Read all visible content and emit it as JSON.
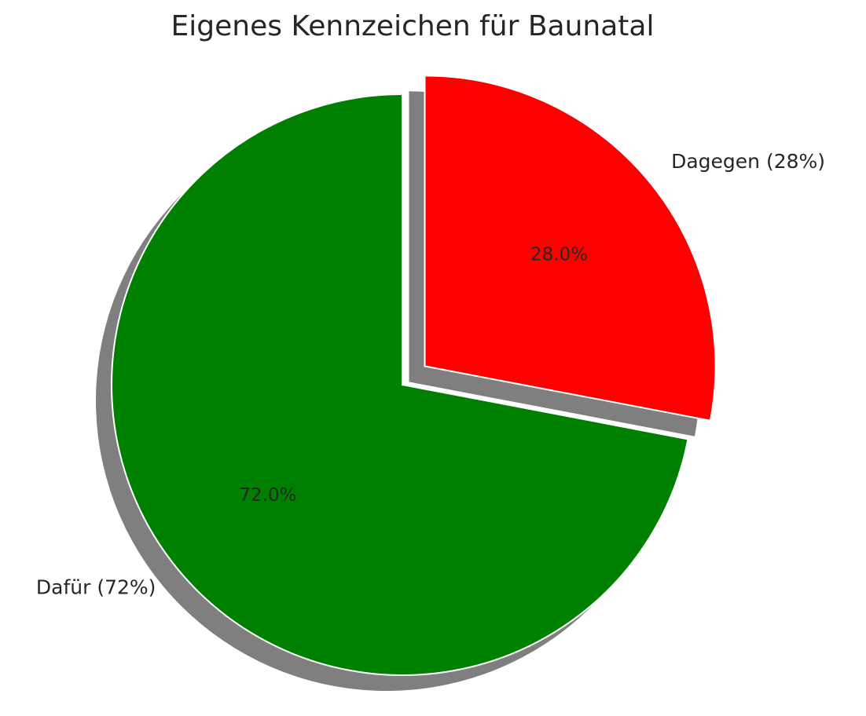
{
  "chart_data": {
    "type": "pie",
    "title": "Eigenes Kennzeichen für Baunatal",
    "categories": [
      "Dafür (72%)",
      "Dagegen (28%)"
    ],
    "values": [
      72,
      28
    ],
    "value_labels": [
      "72.0%",
      "28.0%"
    ],
    "colors": [
      "#008000",
      "#ff0000"
    ]
  }
}
